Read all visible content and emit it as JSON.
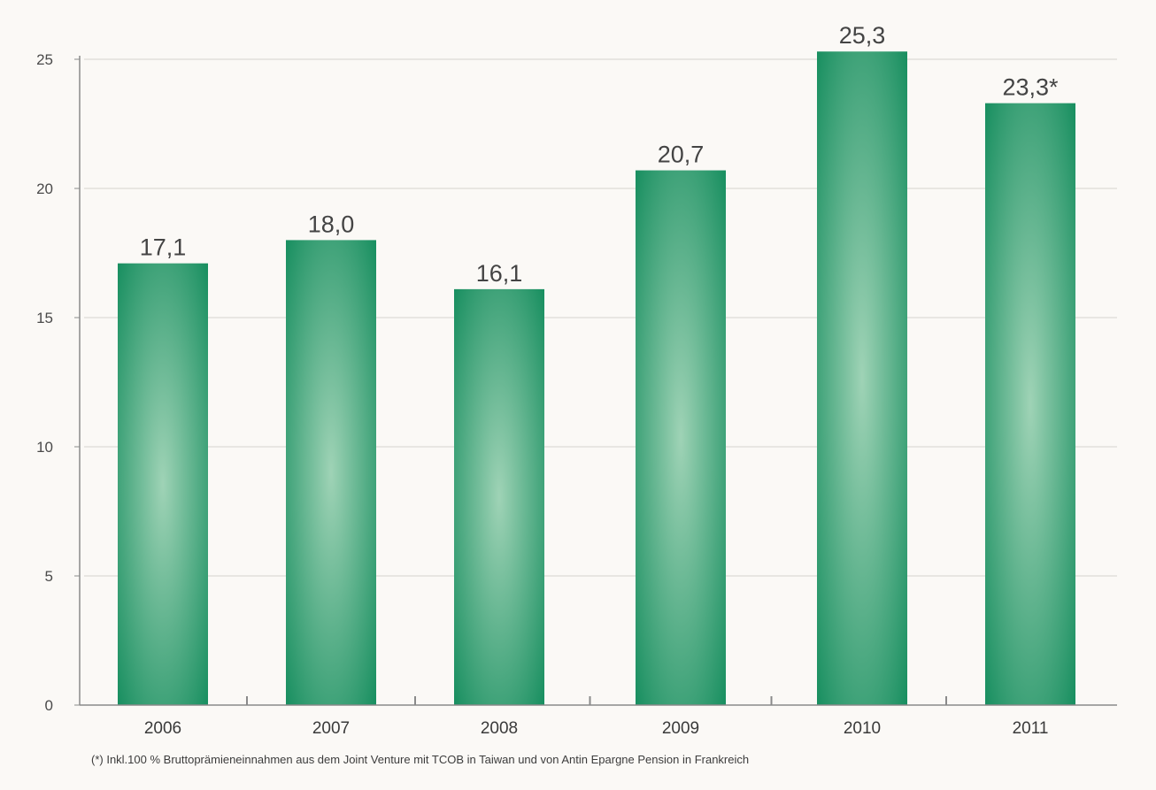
{
  "chart_data": {
    "type": "bar",
    "categories": [
      "2006",
      "2007",
      "2008",
      "2009",
      "2010",
      "2011"
    ],
    "values": [
      17.1,
      18.0,
      16.1,
      20.7,
      25.3,
      23.3
    ],
    "data_labels": [
      "17,1",
      "18,0",
      "16,1",
      "20,7",
      "25,3",
      "23,3*"
    ],
    "title": "",
    "xlabel": "",
    "ylabel": "",
    "ylim": [
      0,
      25
    ],
    "yticks": [
      0,
      5,
      10,
      15,
      20,
      25
    ],
    "grid": true,
    "colors": {
      "bar_edge": "#0f8a5a",
      "bar_center": "#9fd3b6",
      "grid": "#e2e0dc",
      "axis": "#8a8a8a"
    },
    "footnote": "(*) Inkl.100 % Bruttoprämieneinnahmen aus dem Joint Venture mit TCOB in Taiwan und von Antin Epargne Pension in Frankreich"
  }
}
